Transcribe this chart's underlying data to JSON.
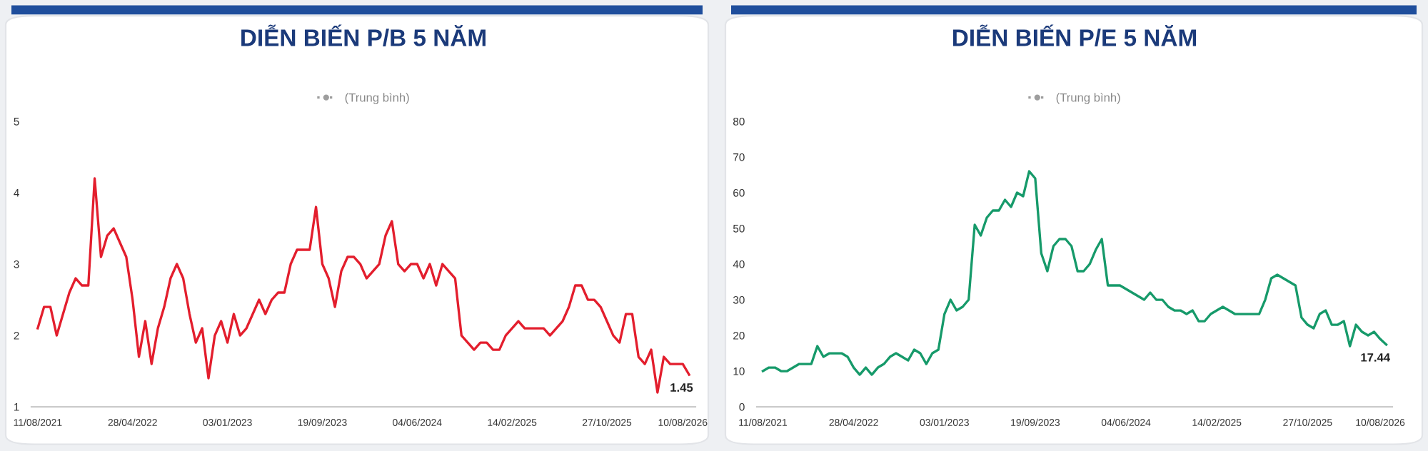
{
  "chart_data": [
    {
      "type": "line",
      "title": "DIỄN BIẾN P/B 5 NĂM",
      "categories": [
        "11/08/2021",
        null,
        null,
        null,
        null,
        null,
        null,
        null,
        null,
        null,
        null,
        null,
        null,
        null,
        null,
        "28/04/2022",
        null,
        null,
        null,
        null,
        null,
        null,
        null,
        null,
        null,
        null,
        null,
        null,
        null,
        null,
        "03/01/2023",
        null,
        null,
        null,
        null,
        null,
        null,
        null,
        null,
        null,
        null,
        null,
        null,
        null,
        null,
        "19/09/2023",
        null,
        null,
        null,
        null,
        null,
        null,
        null,
        null,
        null,
        null,
        null,
        null,
        null,
        null,
        "04/06/2024",
        null,
        null,
        null,
        null,
        null,
        null,
        null,
        null,
        null,
        null,
        null,
        null,
        null,
        null,
        "14/02/2025",
        null,
        null,
        null,
        null,
        null,
        null,
        null,
        null,
        null,
        null,
        null,
        null,
        null,
        null,
        "27/10/2025",
        null,
        null,
        null,
        null,
        null,
        null,
        null,
        null,
        null,
        null,
        null,
        "10/08/2026",
        null
      ],
      "series": [
        {
          "color": "#e31e2d",
          "values": [
            2.1,
            2.4,
            2.4,
            2.0,
            2.3,
            2.6,
            2.8,
            2.7,
            2.7,
            4.2,
            3.1,
            3.4,
            3.5,
            3.3,
            3.1,
            2.5,
            1.7,
            2.2,
            1.6,
            2.1,
            2.4,
            2.8,
            3.0,
            2.8,
            2.3,
            1.9,
            2.1,
            1.4,
            2.0,
            2.2,
            1.9,
            2.3,
            2.0,
            2.1,
            2.3,
            2.5,
            2.3,
            2.5,
            2.6,
            2.6,
            3.0,
            3.2,
            3.2,
            3.2,
            3.8,
            3.0,
            2.8,
            2.4,
            2.9,
            3.1,
            3.1,
            3.0,
            2.8,
            2.9,
            3.0,
            3.4,
            3.6,
            3.0,
            2.9,
            3.0,
            3.0,
            2.8,
            3.0,
            2.7,
            3.0,
            2.9,
            2.8,
            2.0,
            1.9,
            1.8,
            1.9,
            1.9,
            1.8,
            1.8,
            2.0,
            2.1,
            2.2,
            2.1,
            2.1,
            2.1,
            2.1,
            2.0,
            2.1,
            2.2,
            2.4,
            2.7,
            2.7,
            2.5,
            2.5,
            2.4,
            2.2,
            2.0,
            1.9,
            2.3,
            2.3,
            1.7,
            1.6,
            1.8,
            1.2,
            1.7,
            1.6,
            1.6,
            1.6,
            1.45
          ]
        },
        {
          "name": "(Trung bình)",
          "color": "#9e9e9e",
          "line_style": "dotted",
          "marker": "circle",
          "values": [
            null,
            null,
            null,
            null,
            null,
            null,
            null,
            null,
            null,
            null,
            null,
            null,
            null,
            null,
            null,
            null,
            null,
            null,
            null,
            null,
            null,
            null,
            null,
            null,
            null,
            null,
            null,
            null,
            null,
            null,
            null,
            null,
            null,
            null,
            null,
            null,
            null,
            null,
            null,
            null,
            null,
            null,
            null,
            null,
            null,
            null,
            null,
            null,
            null,
            null,
            null,
            null,
            null,
            null,
            null,
            null,
            null,
            null,
            null,
            null,
            null,
            null,
            null,
            null,
            null,
            null,
            null,
            null,
            null,
            null,
            null,
            null,
            null,
            null,
            null,
            null,
            null,
            null,
            null,
            null,
            null,
            null,
            null,
            null,
            null,
            null,
            null,
            null,
            null,
            null,
            null,
            null,
            null,
            null,
            null,
            null,
            null,
            null,
            null,
            null,
            null,
            null,
            null,
            null
          ]
        }
      ],
      "annotations": [
        {
          "text": "1.45",
          "y": 1.45
        }
      ],
      "ylim": [
        1,
        5
      ],
      "yticks": [
        1,
        2,
        3,
        4,
        5
      ],
      "legend": "top"
    },
    {
      "type": "line",
      "title": "DIỄN BIẾN P/E 5 NĂM",
      "categories": [
        "11/08/2021",
        null,
        null,
        null,
        null,
        null,
        null,
        null,
        null,
        null,
        null,
        null,
        null,
        null,
        null,
        "28/04/2022",
        null,
        null,
        null,
        null,
        null,
        null,
        null,
        null,
        null,
        null,
        null,
        null,
        null,
        null,
        "03/01/2023",
        null,
        null,
        null,
        null,
        null,
        null,
        null,
        null,
        null,
        null,
        null,
        null,
        null,
        null,
        "19/09/2023",
        null,
        null,
        null,
        null,
        null,
        null,
        null,
        null,
        null,
        null,
        null,
        null,
        null,
        null,
        "04/06/2024",
        null,
        null,
        null,
        null,
        null,
        null,
        null,
        null,
        null,
        null,
        null,
        null,
        null,
        null,
        "14/02/2025",
        null,
        null,
        null,
        null,
        null,
        null,
        null,
        null,
        null,
        null,
        null,
        null,
        null,
        null,
        "27/10/2025",
        null,
        null,
        null,
        null,
        null,
        null,
        null,
        null,
        null,
        null,
        null,
        "10/08/2026",
        null
      ],
      "series": [
        {
          "color": "#169a6a",
          "values": [
            10,
            11,
            11,
            10,
            10,
            11,
            12,
            12,
            12,
            17,
            14,
            15,
            15,
            15,
            14,
            11,
            9,
            11,
            9,
            11,
            12,
            14,
            15,
            14,
            13,
            16,
            15,
            12,
            15,
            16,
            26,
            30,
            27,
            28,
            30,
            51,
            48,
            53,
            55,
            55,
            58,
            56,
            60,
            59,
            66,
            64,
            43,
            38,
            45,
            47,
            47,
            45,
            38,
            38,
            40,
            44,
            47,
            34,
            34,
            34,
            33,
            32,
            31,
            30,
            32,
            30,
            30,
            28,
            27,
            27,
            26,
            27,
            24,
            24,
            26,
            27,
            28,
            27,
            26,
            26,
            26,
            26,
            26,
            30,
            36,
            37,
            36,
            35,
            34,
            25,
            23,
            22,
            26,
            27,
            23,
            23,
            24,
            17,
            23,
            21,
            20,
            21,
            19,
            17.44
          ]
        },
        {
          "name": "(Trung bình)",
          "color": "#9e9e9e",
          "line_style": "dotted",
          "marker": "circle",
          "values": [
            null,
            null,
            null,
            null,
            null,
            null,
            null,
            null,
            null,
            null,
            null,
            null,
            null,
            null,
            null,
            null,
            null,
            null,
            null,
            null,
            null,
            null,
            null,
            null,
            null,
            null,
            null,
            null,
            null,
            null,
            null,
            null,
            null,
            null,
            null,
            null,
            null,
            null,
            null,
            null,
            null,
            null,
            null,
            null,
            null,
            null,
            null,
            null,
            null,
            null,
            null,
            null,
            null,
            null,
            null,
            null,
            null,
            null,
            null,
            null,
            null,
            null,
            null,
            null,
            null,
            null,
            null,
            null,
            null,
            null,
            null,
            null,
            null,
            null,
            null,
            null,
            null,
            null,
            null,
            null,
            null,
            null,
            null,
            null,
            null,
            null,
            null,
            null,
            null,
            null,
            null,
            null,
            null,
            null,
            null,
            null,
            null,
            null,
            null,
            null,
            null,
            null,
            null,
            null
          ]
        }
      ],
      "annotations": [
        {
          "text": "17.44",
          "y": 17.44
        }
      ],
      "ylim": [
        0,
        80
      ],
      "yticks": [
        0,
        10,
        20,
        30,
        40,
        50,
        60,
        70,
        80
      ],
      "legend": "top"
    }
  ]
}
